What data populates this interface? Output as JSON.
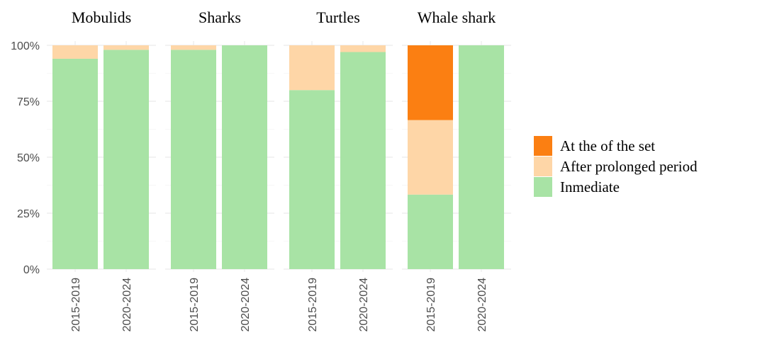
{
  "chart_data": {
    "type": "bar",
    "stacked": true,
    "percent": true,
    "facets": [
      "Mobulids",
      "Sharks",
      "Turtles",
      "Whale shark"
    ],
    "categories": [
      "2015-2019",
      "2020-2024"
    ],
    "ylim": [
      0,
      100
    ],
    "yticks": [
      "0%",
      "25%",
      "50%",
      "75%",
      "100%"
    ],
    "grid": true,
    "legend_position": "right",
    "colors": {
      "At the of the set": "#fb7f12",
      "After prolonged period": "#fed6a7",
      "Inmediate": "#a8e3a5"
    },
    "series": [
      {
        "name": "Inmediate",
        "values": {
          "Mobulids": [
            94,
            98
          ],
          "Sharks": [
            98,
            100
          ],
          "Turtles": [
            80,
            97
          ],
          "Whale shark": [
            33.3,
            100
          ]
        }
      },
      {
        "name": "After prolonged period",
        "values": {
          "Mobulids": [
            6,
            2
          ],
          "Sharks": [
            2,
            0
          ],
          "Turtles": [
            20,
            3
          ],
          "Whale shark": [
            33.3,
            0
          ]
        }
      },
      {
        "name": "At the of the set",
        "values": {
          "Mobulids": [
            0,
            0
          ],
          "Sharks": [
            0,
            0
          ],
          "Turtles": [
            0,
            0
          ],
          "Whale shark": [
            33.4,
            0
          ]
        }
      }
    ],
    "legend_order": [
      "At the of the set",
      "After prolonged period",
      "Inmediate"
    ]
  }
}
